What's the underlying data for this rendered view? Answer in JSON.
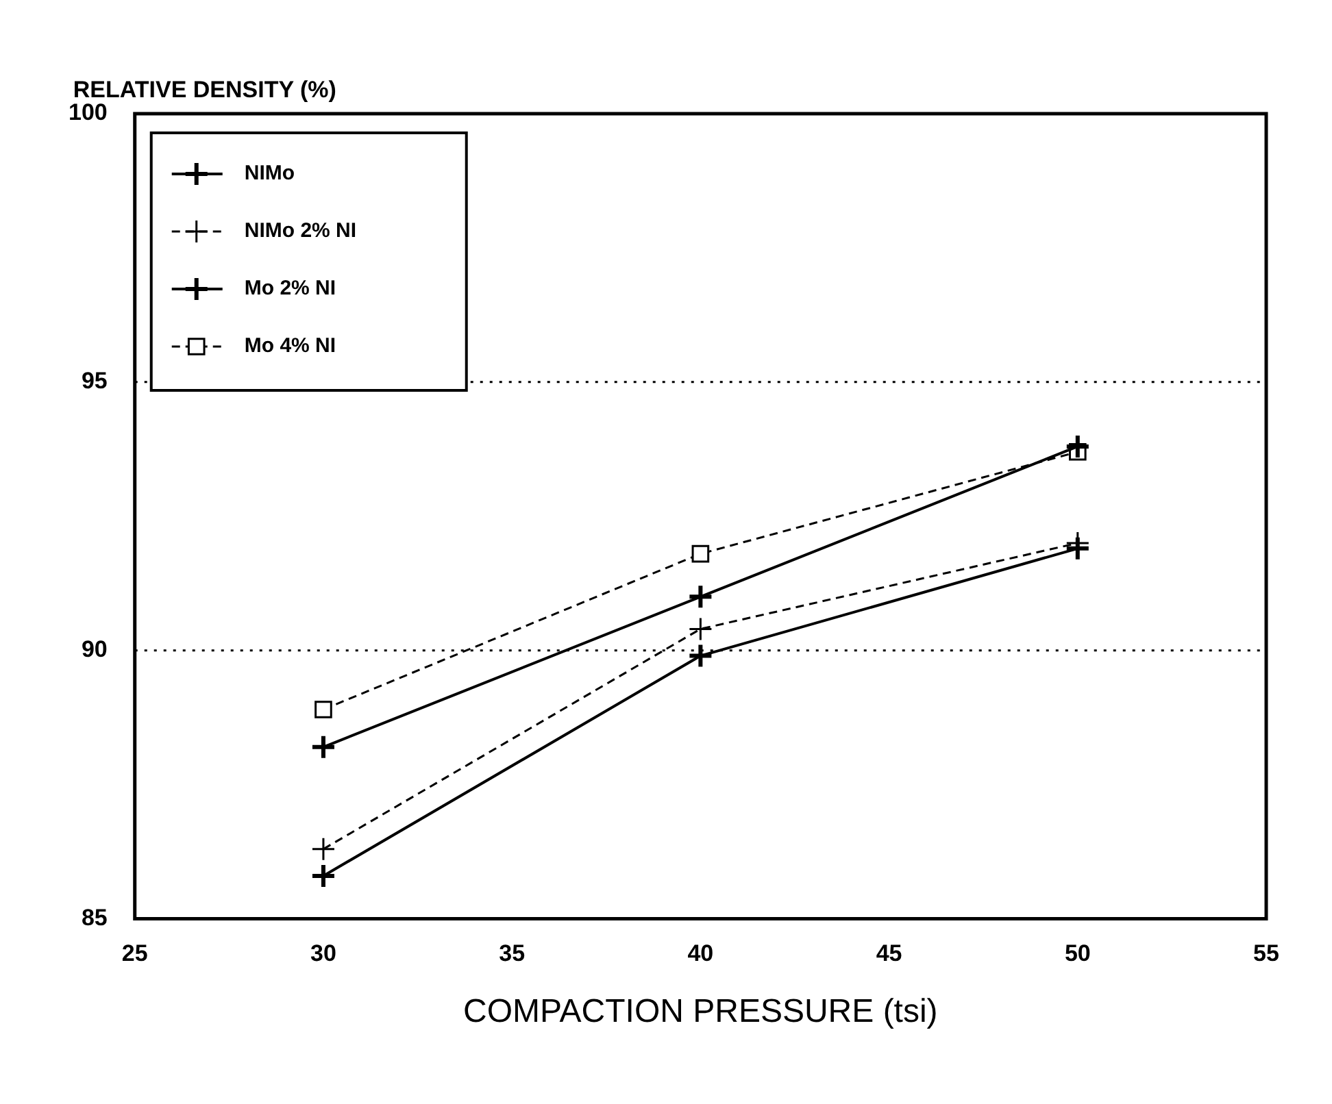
{
  "chart_data": {
    "type": "line",
    "xlabel": "COMPACTION PRESSURE (tsi)",
    "ylabel": "RELATIVE DENSITY (%)",
    "x": [
      30,
      40,
      50
    ],
    "series": [
      {
        "name": "NIMo",
        "color": "#000000",
        "values": [
          85.8,
          89.9,
          91.9
        ],
        "marker": "cross",
        "line_style": "solid"
      },
      {
        "name": "NIMo 2% NI",
        "color": "#000000",
        "values": [
          86.3,
          90.4,
          92.0
        ],
        "marker": "cross",
        "line_style": "dashed"
      },
      {
        "name": "Mo 2% NI",
        "color": "#000000",
        "values": [
          88.2,
          91.0,
          93.8
        ],
        "marker": "cross",
        "line_style": "solid"
      },
      {
        "name": "Mo 4% NI",
        "color": "#000000",
        "values": [
          88.9,
          91.8,
          93.7
        ],
        "marker": "square",
        "line_style": "dashed"
      }
    ],
    "xlim": [
      25,
      55
    ],
    "xticks": [
      25,
      30,
      35,
      40,
      45,
      50,
      55
    ],
    "ylim": [
      85,
      100
    ],
    "yticks": [
      85,
      90,
      95,
      100
    ],
    "grid": "y",
    "legend": "top left"
  }
}
